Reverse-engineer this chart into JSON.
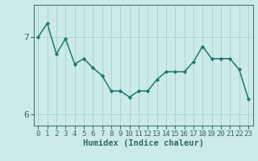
{
  "x": [
    0,
    1,
    2,
    3,
    4,
    5,
    6,
    7,
    8,
    9,
    10,
    11,
    12,
    13,
    14,
    15,
    16,
    17,
    18,
    19,
    20,
    21,
    22,
    23
  ],
  "y": [
    7.0,
    7.18,
    6.78,
    6.98,
    6.65,
    6.72,
    6.6,
    6.5,
    6.3,
    6.3,
    6.22,
    6.3,
    6.3,
    6.45,
    6.55,
    6.55,
    6.55,
    6.68,
    6.88,
    6.72,
    6.72,
    6.72,
    6.58,
    6.2
  ],
  "line_color": "#1a7a6e",
  "marker": "D",
  "marker_size": 2.2,
  "bg_color": "#cceae7",
  "grid_color": "#aad4d0",
  "xlabel": "Humidex (Indice chaleur)",
  "xlim": [
    -0.5,
    23.5
  ],
  "ylim": [
    5.85,
    7.42
  ],
  "yticks": [
    6,
    7
  ],
  "xticks": [
    0,
    1,
    2,
    3,
    4,
    5,
    6,
    7,
    8,
    9,
    10,
    11,
    12,
    13,
    14,
    15,
    16,
    17,
    18,
    19,
    20,
    21,
    22,
    23
  ],
  "xlabel_fontsize": 7.5,
  "tick_fontsize": 6.5,
  "ytick_fontsize": 8,
  "axis_color": "#336666",
  "spine_color": "#447777",
  "linewidth": 1.1
}
